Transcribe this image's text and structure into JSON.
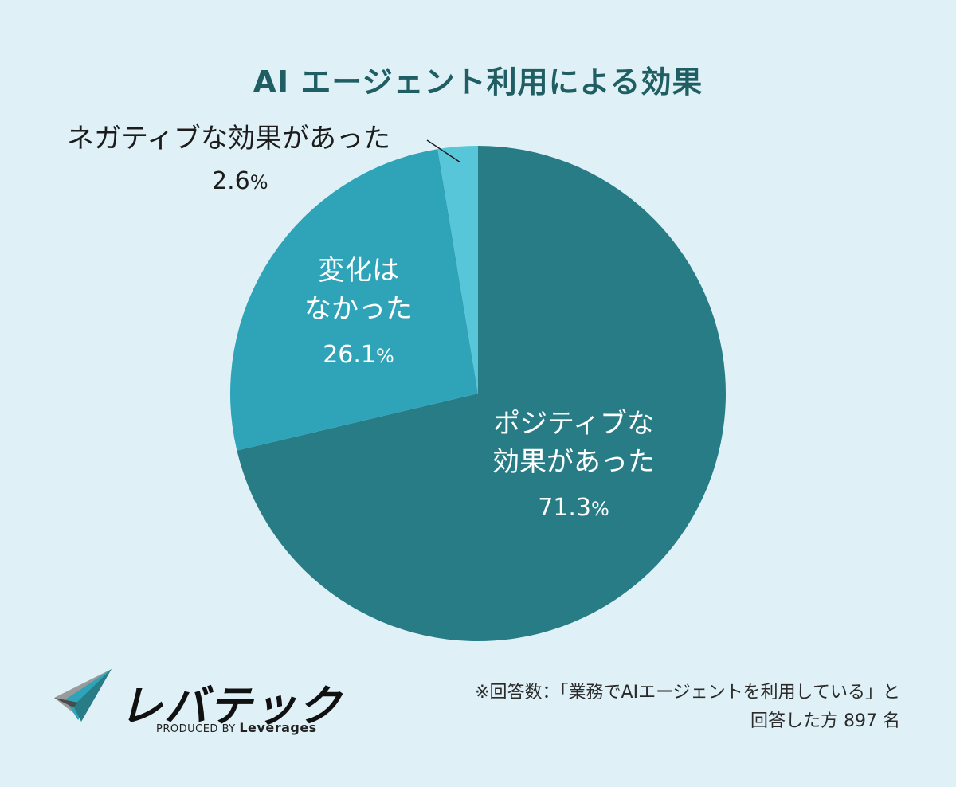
{
  "title": "AI エージェント利用による効果",
  "chart_data": {
    "type": "pie",
    "title": "AI エージェント利用による効果",
    "slices": [
      {
        "label_lines": [
          "ポジティブな",
          "効果があった"
        ],
        "value": 71.3,
        "display": "71.3",
        "color": "#277c86"
      },
      {
        "label_lines": [
          "変化は",
          "なかった"
        ],
        "value": 26.1,
        "display": "26.1",
        "color": "#2fa3b8"
      },
      {
        "label_lines": [
          "ネガティブな効果があった"
        ],
        "value": 2.6,
        "display": "2.6",
        "color": "#57c6d8"
      }
    ],
    "unit": "%",
    "start_angle": "12 o'clock",
    "direction": "clockwise"
  },
  "logo": {
    "wordmark": "レバテック",
    "produced_by": "PRODUCED BY",
    "brand": "Leverages"
  },
  "footnote": {
    "line1": "※回答数：「業務でAIエージェントを利用している」と",
    "line2": "回答した方 897 名"
  }
}
